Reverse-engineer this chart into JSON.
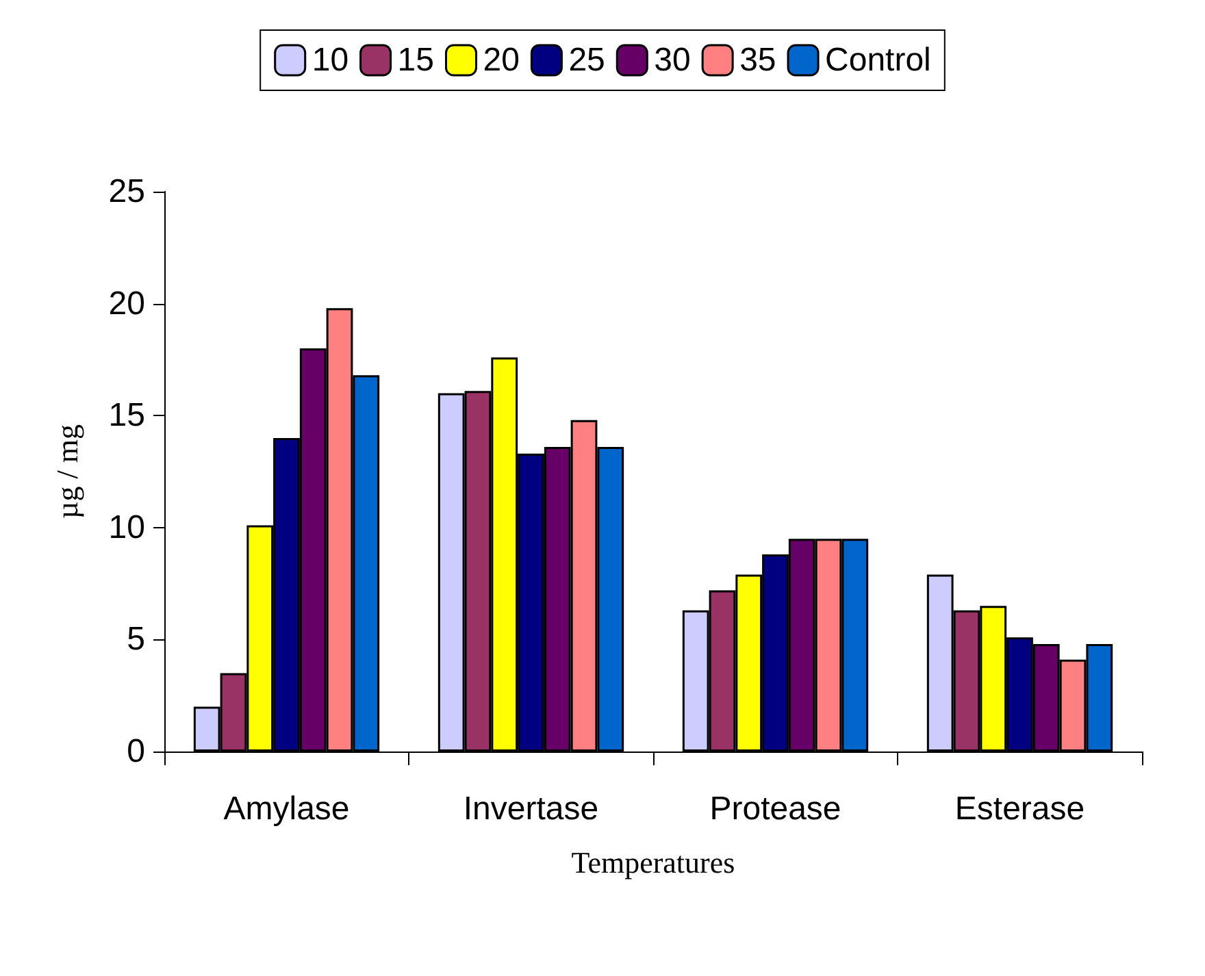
{
  "chart_data": {
    "type": "bar",
    "xlabel": "Temperatures",
    "ylabel": "µg / mg",
    "categories": [
      "Amylase",
      "Invertase",
      "Protease",
      "Esterase"
    ],
    "series": [
      {
        "name": "10",
        "color": "#ccccff",
        "values": [
          2.0,
          16.0,
          6.3,
          7.9
        ]
      },
      {
        "name": "15",
        "color": "#993366",
        "values": [
          3.5,
          16.1,
          7.2,
          6.3
        ]
      },
      {
        "name": "20",
        "color": "#ffff00",
        "values": [
          10.1,
          17.6,
          7.9,
          6.5
        ]
      },
      {
        "name": "25",
        "color": "#000080",
        "values": [
          14.0,
          13.3,
          8.8,
          5.1
        ]
      },
      {
        "name": "30",
        "color": "#660066",
        "values": [
          18.0,
          13.6,
          9.5,
          4.8
        ]
      },
      {
        "name": "35",
        "color": "#ff8080",
        "values": [
          19.8,
          14.8,
          9.5,
          4.1
        ]
      },
      {
        "name": "Control",
        "color": "#0066cc",
        "values": [
          16.8,
          13.6,
          9.5,
          4.8
        ]
      }
    ],
    "ylim": [
      0,
      25
    ],
    "yticks": [
      0,
      5,
      10,
      15,
      20,
      25
    ],
    "grid": false,
    "legend": "top"
  }
}
